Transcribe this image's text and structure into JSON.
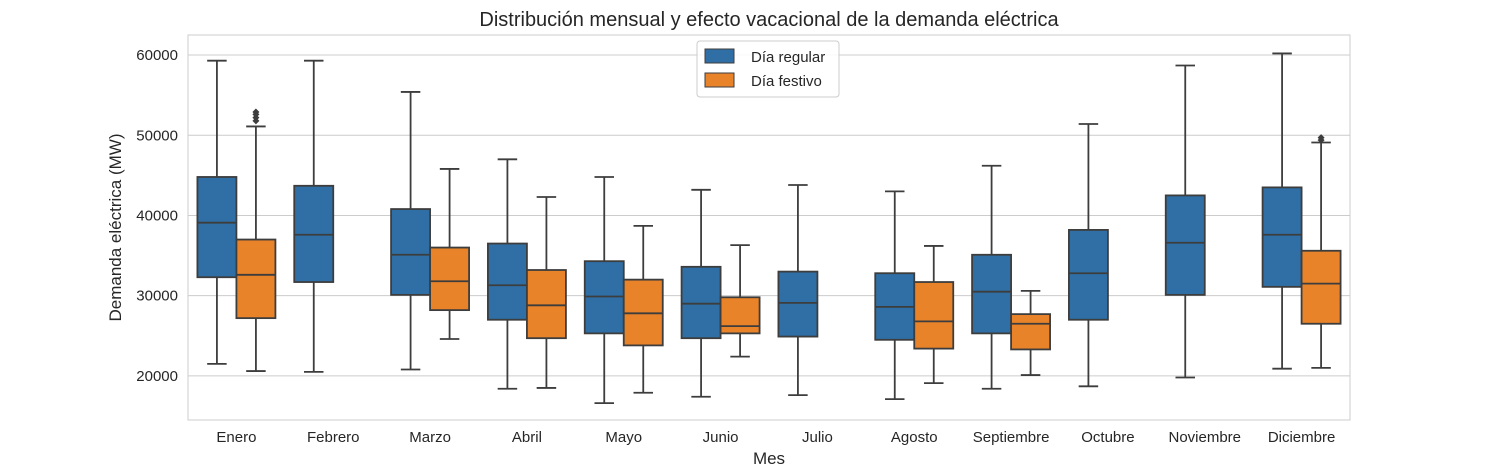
{
  "chart_data": {
    "type": "boxplot",
    "title": "Distribución mensual y efecto vacacional de la demanda eléctrica",
    "xlabel": "Mes",
    "ylabel": "Demanda eléctrica (MW)",
    "ylim": [
      14500,
      62500
    ],
    "yticks": [
      20000,
      30000,
      40000,
      50000,
      60000
    ],
    "grid": true,
    "legend_position": "top-center",
    "categories": [
      "Enero",
      "Febrero",
      "Marzo",
      "Abril",
      "Mayo",
      "Junio",
      "Julio",
      "Agosto",
      "Septiembre",
      "Octubre",
      "Noviembre",
      "Diciembre"
    ],
    "series": [
      {
        "name": "Día regular",
        "color": "#2f6fa5",
        "boxes": [
          {
            "category": "Enero",
            "whislo": 21500,
            "q1": 32300,
            "med": 39100,
            "q3": 44800,
            "whishi": 59300,
            "fliers": []
          },
          {
            "category": "Febrero",
            "whislo": 20500,
            "q1": 31700,
            "med": 37600,
            "q3": 43700,
            "whishi": 59300,
            "fliers": []
          },
          {
            "category": "Marzo",
            "whislo": 20800,
            "q1": 30100,
            "med": 35100,
            "q3": 40800,
            "whishi": 55400,
            "fliers": []
          },
          {
            "category": "Abril",
            "whislo": 18400,
            "q1": 27000,
            "med": 31300,
            "q3": 36500,
            "whishi": 47000,
            "fliers": []
          },
          {
            "category": "Mayo",
            "whislo": 16600,
            "q1": 25300,
            "med": 29900,
            "q3": 34300,
            "whishi": 44800,
            "fliers": []
          },
          {
            "category": "Junio",
            "whislo": 17400,
            "q1": 24700,
            "med": 29000,
            "q3": 33600,
            "whishi": 43200,
            "fliers": []
          },
          {
            "category": "Julio",
            "whislo": 17600,
            "q1": 24900,
            "med": 29100,
            "q3": 33000,
            "whishi": 43800,
            "fliers": []
          },
          {
            "category": "Agosto",
            "whislo": 17100,
            "q1": 24500,
            "med": 28600,
            "q3": 32800,
            "whishi": 43000,
            "fliers": []
          },
          {
            "category": "Septiembre",
            "whislo": 18400,
            "q1": 25300,
            "med": 30500,
            "q3": 35100,
            "whishi": 46200,
            "fliers": []
          },
          {
            "category": "Octubre",
            "whislo": 18700,
            "q1": 27000,
            "med": 32800,
            "q3": 38200,
            "whishi": 51400,
            "fliers": []
          },
          {
            "category": "Noviembre",
            "whislo": 19800,
            "q1": 30100,
            "med": 36600,
            "q3": 42500,
            "whishi": 58700,
            "fliers": []
          },
          {
            "category": "Diciembre",
            "whislo": 20900,
            "q1": 31100,
            "med": 37600,
            "q3": 43500,
            "whishi": 60200,
            "fliers": []
          }
        ]
      },
      {
        "name": "Día festivo",
        "color": "#e8832a",
        "boxes": [
          {
            "category": "Enero",
            "whislo": 20600,
            "q1": 27200,
            "med": 32600,
            "q3": 37000,
            "whishi": 51100,
            "fliers": [
              51800,
              52200,
              52600,
              52900
            ]
          },
          {
            "category": "Marzo",
            "whislo": 24600,
            "q1": 28200,
            "med": 31800,
            "q3": 36000,
            "whishi": 45800,
            "fliers": []
          },
          {
            "category": "Abril",
            "whislo": 18500,
            "q1": 24700,
            "med": 28800,
            "q3": 33200,
            "whishi": 42300,
            "fliers": []
          },
          {
            "category": "Mayo",
            "whislo": 17900,
            "q1": 23800,
            "med": 27800,
            "q3": 32000,
            "whishi": 38700,
            "fliers": []
          },
          {
            "category": "Junio",
            "whislo": 22400,
            "q1": 25300,
            "med": 26200,
            "q3": 29800,
            "whishi": 36300,
            "fliers": []
          },
          {
            "category": "Agosto",
            "whislo": 19100,
            "q1": 23400,
            "med": 26800,
            "q3": 31700,
            "whishi": 36200,
            "fliers": []
          },
          {
            "category": "Septiembre",
            "whislo": 20100,
            "q1": 23300,
            "med": 26500,
            "q3": 27700,
            "whishi": 30600,
            "fliers": []
          },
          {
            "category": "Diciembre",
            "whislo": 21000,
            "q1": 26500,
            "med": 31500,
            "q3": 35600,
            "whishi": 49100,
            "fliers": [
              49400,
              49700
            ]
          }
        ]
      }
    ]
  }
}
